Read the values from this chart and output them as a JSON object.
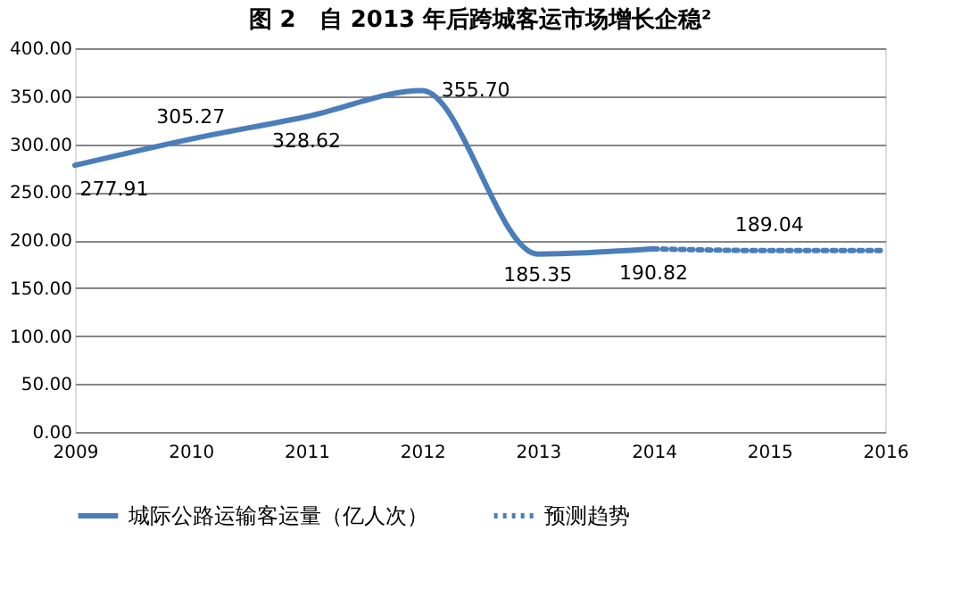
{
  "chart_data": {
    "type": "line",
    "title": "图 2　自 2013 年后跨城客运市场增长企稳²",
    "x": [
      2009,
      2010,
      2011,
      2012,
      2013,
      2014,
      2015,
      2016
    ],
    "series": [
      {
        "name": "城际公路运输客运量（亿人次）",
        "color": "#4a7ebb",
        "line_style": "solid",
        "values": [
          277.91,
          305.27,
          328.62,
          355.7,
          185.35,
          190.82,
          null,
          null
        ],
        "value_labels": [
          "277.91",
          "305.27",
          "328.62",
          "355.70",
          "185.35",
          "190.82",
          null,
          null
        ]
      },
      {
        "name": "预测趋势",
        "color": "#4a7ebb",
        "line_style": "dotted",
        "values": [
          null,
          null,
          null,
          null,
          null,
          190.82,
          189.04,
          189
        ],
        "value_labels": [
          null,
          null,
          null,
          null,
          null,
          null,
          "189.04",
          null
        ]
      }
    ],
    "xlim": [
      2009,
      2016
    ],
    "xticks": [
      2009,
      2010,
      2011,
      2012,
      2013,
      2014,
      2015,
      2016
    ],
    "ylim": [
      0,
      400
    ],
    "yticks": [
      {
        "value": 0,
        "label": "0.00"
      },
      {
        "value": 50,
        "label": "50.00"
      },
      {
        "value": 100,
        "label": "100.00"
      },
      {
        "value": 150,
        "label": "150.00"
      },
      {
        "value": 200,
        "label": "200.00"
      },
      {
        "value": 250,
        "label": "250.00"
      },
      {
        "value": 300,
        "label": "300.00"
      },
      {
        "value": 350,
        "label": "350.00"
      },
      {
        "value": 400,
        "label": "400.00"
      }
    ],
    "grid": "y",
    "legend": "bottom",
    "marker": "none"
  }
}
